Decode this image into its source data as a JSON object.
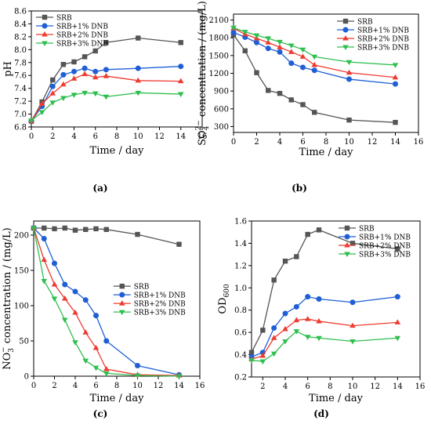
{
  "chart_data": [
    {
      "type": "line",
      "panel_label": "(a)",
      "xlabel": "Time / day",
      "ylabel": "pH",
      "xlim": [
        0,
        16
      ],
      "ylim": [
        6.8,
        8.6
      ],
      "xticks": [
        0,
        2,
        4,
        6,
        8,
        10,
        12,
        14,
        16
      ],
      "yticks": [
        6.8,
        7.0,
        7.2,
        7.4,
        7.6,
        7.8,
        8.0,
        8.2,
        8.4,
        8.6
      ],
      "ytick_labels": [
        "6.8",
        "7.0",
        "7.2",
        "7.4",
        "7.6",
        "7.8",
        "8.0",
        "8.2",
        "8.4",
        "8.6"
      ],
      "legend_position": "top-left",
      "series": [
        {
          "name": "SRB",
          "marker": "square",
          "color": "#555555",
          "x": [
            0,
            1,
            2,
            3,
            4,
            5,
            6,
            7,
            10,
            14
          ],
          "y": [
            6.89,
            7.19,
            7.53,
            7.77,
            7.81,
            7.89,
            7.98,
            8.11,
            8.18,
            8.11
          ]
        },
        {
          "name": "SRB+1% DNB",
          "marker": "circle",
          "color": "#1f5fd6",
          "x": [
            0,
            1,
            2,
            3,
            4,
            5,
            6,
            7,
            10,
            14
          ],
          "y": [
            6.89,
            7.12,
            7.43,
            7.61,
            7.66,
            7.71,
            7.66,
            7.69,
            7.71,
            7.74
          ]
        },
        {
          "name": "SRB+2% DNB",
          "marker": "triangle-up",
          "color": "#ee3b30",
          "x": [
            0,
            1,
            2,
            3,
            4,
            5,
            6,
            7,
            10,
            14
          ],
          "y": [
            6.89,
            7.16,
            7.32,
            7.46,
            7.55,
            7.62,
            7.57,
            7.59,
            7.52,
            7.51
          ]
        },
        {
          "name": "SRB+3% DNB",
          "marker": "triangle-down",
          "color": "#2fbf4f",
          "x": [
            0,
            1,
            2,
            3,
            4,
            5,
            6,
            7,
            10,
            14
          ],
          "y": [
            6.9,
            7.03,
            7.18,
            7.25,
            7.3,
            7.33,
            7.32,
            7.27,
            7.33,
            7.31
          ]
        }
      ]
    },
    {
      "type": "line",
      "panel_label": "(b)",
      "xlabel": "Time / day",
      "ylabel": "SO42− concentration / (mg/L)",
      "ylabel_parts": {
        "pre": "SO",
        "sub": "4",
        "sup": "2−",
        "post": " concentration / (mg/L)"
      },
      "xlim": [
        0,
        16
      ],
      "ylim": [
        200,
        2200
      ],
      "xticks": [
        0,
        2,
        4,
        6,
        8,
        10,
        12,
        14,
        16
      ],
      "yticks": [
        300,
        600,
        900,
        1200,
        1500,
        1800,
        2100
      ],
      "ytick_labels": [
        "300",
        "600",
        "900",
        "1200",
        "1500",
        "1800",
        "2100"
      ],
      "legend_position": "top-right",
      "series": [
        {
          "name": "SRB",
          "marker": "square",
          "color": "#555555",
          "x": [
            0,
            1,
            2,
            3,
            4,
            5,
            6,
            7,
            10,
            14
          ],
          "y": [
            1850,
            1580,
            1210,
            910,
            860,
            750,
            670,
            540,
            410,
            370
          ]
        },
        {
          "name": "SRB+1% DNB",
          "marker": "circle",
          "color": "#1f5fd6",
          "x": [
            0,
            1,
            2,
            3,
            4,
            5,
            6,
            7,
            10,
            14
          ],
          "y": [
            1890,
            1810,
            1720,
            1620,
            1560,
            1370,
            1300,
            1250,
            1100,
            1020
          ]
        },
        {
          "name": "SRB+2% DNB",
          "marker": "triangle-up",
          "color": "#ee3b30",
          "x": [
            0,
            1,
            2,
            3,
            4,
            5,
            6,
            7,
            10,
            14
          ],
          "y": [
            1960,
            1860,
            1790,
            1720,
            1640,
            1560,
            1480,
            1340,
            1210,
            1130
          ]
        },
        {
          "name": "SRB+3% DNB",
          "marker": "triangle-down",
          "color": "#2fbf4f",
          "x": [
            0,
            1,
            2,
            3,
            4,
            5,
            6,
            7,
            10,
            14
          ],
          "y": [
            1970,
            1900,
            1840,
            1790,
            1730,
            1670,
            1600,
            1480,
            1390,
            1340
          ]
        }
      ]
    },
    {
      "type": "line",
      "panel_label": "(c)",
      "xlabel": "Time / day",
      "ylabel": "NO3− concentration / (mg/L)",
      "ylabel_parts": {
        "pre": "NO",
        "sub": "3",
        "sup": "−",
        "post": " concentration / (mg/L)"
      },
      "xlim": [
        0,
        16
      ],
      "ylim": [
        0,
        220
      ],
      "xticks": [
        0,
        2,
        4,
        6,
        8,
        10,
        12,
        14,
        16
      ],
      "yticks": [
        0,
        50,
        100,
        150,
        200
      ],
      "ytick_labels": [
        "0",
        "50",
        "100",
        "150",
        "200"
      ],
      "legend_position": "center-right",
      "series": [
        {
          "name": "SRB",
          "marker": "square",
          "color": "#555555",
          "x": [
            0,
            1,
            2,
            3,
            4,
            5,
            6,
            7,
            10,
            14
          ],
          "y": [
            210,
            210,
            209,
            210,
            207,
            208,
            209,
            208,
            201,
            187
          ]
        },
        {
          "name": "SRB+1% DNB",
          "marker": "circle",
          "color": "#1f5fd6",
          "x": [
            0,
            1,
            2,
            3,
            4,
            5,
            6,
            7,
            10,
            14
          ],
          "y": [
            210,
            195,
            160,
            130,
            120,
            108,
            86,
            50,
            15,
            2
          ]
        },
        {
          "name": "SRB+2% DNB",
          "marker": "triangle-up",
          "color": "#ee3b30",
          "x": [
            0,
            1,
            2,
            3,
            4,
            5,
            6,
            7,
            10,
            14
          ],
          "y": [
            210,
            165,
            130,
            110,
            90,
            62,
            40,
            10,
            2,
            1
          ]
        },
        {
          "name": "SRB+3% DNB",
          "marker": "triangle-down",
          "color": "#2fbf4f",
          "x": [
            0,
            1,
            2,
            3,
            4,
            5,
            6,
            7,
            10,
            14
          ],
          "y": [
            210,
            135,
            110,
            80,
            48,
            22,
            12,
            4,
            1,
            0
          ]
        }
      ]
    },
    {
      "type": "line",
      "panel_label": "(d)",
      "xlabel": "Time / day",
      "ylabel": "OD600",
      "ylabel_parts": {
        "pre": "OD",
        "sub": "600",
        "sup": "",
        "post": ""
      },
      "xlim": [
        1,
        16
      ],
      "ylim": [
        0.2,
        1.6
      ],
      "xticks": [
        2,
        4,
        6,
        8,
        10,
        12,
        14,
        16
      ],
      "yticks": [
        0.2,
        0.4,
        0.6,
        0.8,
        1.0,
        1.2,
        1.4,
        1.6
      ],
      "ytick_labels": [
        "0.2",
        "0.4",
        "0.6",
        "0.8",
        "1.0",
        "1.2",
        "1.4",
        "1.6"
      ],
      "legend_position": "top-right",
      "series": [
        {
          "name": "SRB",
          "marker": "square",
          "color": "#555555",
          "x": [
            1,
            2,
            3,
            4,
            5,
            6,
            7,
            10,
            14
          ],
          "y": [
            0.42,
            0.62,
            1.07,
            1.24,
            1.28,
            1.48,
            1.52,
            1.4,
            1.35
          ]
        },
        {
          "name": "SRB+1% DNB",
          "marker": "circle",
          "color": "#1f5fd6",
          "x": [
            1,
            2,
            3,
            4,
            5,
            6,
            7,
            10,
            14
          ],
          "y": [
            0.38,
            0.42,
            0.64,
            0.77,
            0.83,
            0.92,
            0.9,
            0.87,
            0.92
          ]
        },
        {
          "name": "SRB+2% DNB",
          "marker": "triangle-up",
          "color": "#ee3b30",
          "x": [
            1,
            2,
            3,
            4,
            5,
            6,
            7,
            10,
            14
          ],
          "y": [
            0.36,
            0.39,
            0.55,
            0.63,
            0.71,
            0.72,
            0.7,
            0.66,
            0.69
          ]
        },
        {
          "name": "SRB+3% DNB",
          "marker": "triangle-down",
          "color": "#2fbf4f",
          "x": [
            1,
            2,
            3,
            4,
            5,
            6,
            7,
            10,
            14
          ],
          "y": [
            0.35,
            0.34,
            0.41,
            0.52,
            0.61,
            0.56,
            0.55,
            0.52,
            0.55
          ]
        }
      ]
    }
  ]
}
